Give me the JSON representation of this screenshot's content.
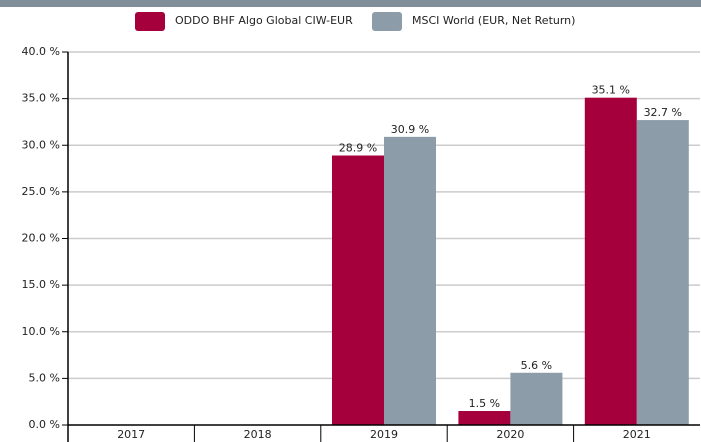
{
  "chart_data": {
    "type": "bar",
    "categories": [
      "2017",
      "2018",
      "2019",
      "2020",
      "2021"
    ],
    "series": [
      {
        "name": "ODDO BHF Algo Global CIW-EUR",
        "color": "#a5003b",
        "values": [
          null,
          null,
          28.9,
          1.5,
          35.1
        ],
        "value_labels": [
          null,
          null,
          "28.9 %",
          "1.5 %",
          "35.1 %"
        ]
      },
      {
        "name": "MSCI World (EUR, Net Return)",
        "color": "#8c9ca8",
        "values": [
          null,
          null,
          30.9,
          5.6,
          32.7
        ],
        "value_labels": [
          null,
          null,
          "30.9 %",
          "5.6 %",
          "32.7 %"
        ]
      }
    ],
    "ylim": [
      0,
      40
    ],
    "yticks": [
      {
        "value": 0,
        "label": "0.0 %"
      },
      {
        "value": 5,
        "label": "5.0 %"
      },
      {
        "value": 10,
        "label": "10.0 %"
      },
      {
        "value": 15,
        "label": "15.0 %"
      },
      {
        "value": 20,
        "label": "20.0 %"
      },
      {
        "value": 25,
        "label": "25.0 %"
      },
      {
        "value": 30,
        "label": "30.0 %"
      },
      {
        "value": 35,
        "label": "35.0 %"
      },
      {
        "value": 40,
        "label": "40.0 %"
      }
    ],
    "grid": true,
    "legend": "top"
  }
}
